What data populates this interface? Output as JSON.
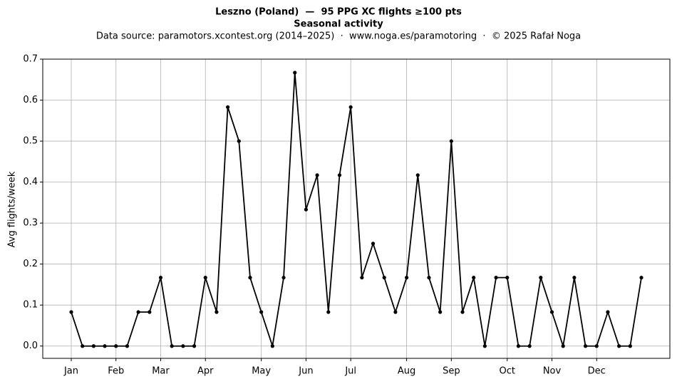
{
  "chart_data": {
    "type": "line",
    "title": "Leszno (Poland)  —  95 PPG XC flights ≥100 pts",
    "subtitle": "Seasonal activity",
    "source": "Data source: paramotors.xcontest.org (2014–2025)  ·  www.noga.es/paramotoring  ·  © 2025 Rafał Noga",
    "y_label": "Avg flights/week",
    "x": [
      1,
      2,
      3,
      4,
      5,
      6,
      7,
      8,
      9,
      10,
      11,
      12,
      13,
      14,
      15,
      16,
      17,
      18,
      19,
      20,
      21,
      22,
      23,
      24,
      25,
      26,
      27,
      28,
      29,
      30,
      31,
      32,
      33,
      34,
      35,
      36,
      37,
      38,
      39,
      40,
      41,
      42,
      43,
      44,
      45,
      46,
      47,
      48,
      49,
      50,
      51,
      52
    ],
    "series": [
      {
        "color": "#000000",
        "values": [
          0.083,
          0,
          0,
          0,
          0,
          0,
          0.083,
          0.083,
          0.167,
          0,
          0,
          0,
          0.167,
          0.083,
          0.583,
          0.5,
          0.167,
          0.083,
          0,
          0.167,
          0.667,
          0.333,
          0.417,
          0.083,
          0.417,
          0.583,
          0.167,
          0.25,
          0.167,
          0.083,
          0.167,
          0.417,
          0.167,
          0.083,
          0.5,
          0.083,
          0.167,
          0,
          0.167,
          0.167,
          0,
          0,
          0.167,
          0.083,
          0,
          0.167,
          0,
          0,
          0.083,
          0,
          0,
          0.167
        ]
      }
    ],
    "xlim": [
      -1.55,
      54.55
    ],
    "xticks": [
      {
        "value": 1,
        "label": "Jan"
      },
      {
        "value": 5,
        "label": "Feb"
      },
      {
        "value": 9,
        "label": "Mar"
      },
      {
        "value": 13,
        "label": "Apr"
      },
      {
        "value": 18,
        "label": "May"
      },
      {
        "value": 22,
        "label": "Jun"
      },
      {
        "value": 26,
        "label": "Jul"
      },
      {
        "value": 31,
        "label": "Aug"
      },
      {
        "value": 35,
        "label": "Sep"
      },
      {
        "value": 40,
        "label": "Oct"
      },
      {
        "value": 44,
        "label": "Nov"
      },
      {
        "value": 48,
        "label": "Dec"
      }
    ],
    "ylim": [
      -0.03,
      0.7
    ],
    "yticks": [
      {
        "value": 0,
        "label": "0.0"
      },
      0.1,
      0.2,
      0.3,
      0.4,
      0.5,
      0.6,
      0.7
    ],
    "grid": true
  }
}
